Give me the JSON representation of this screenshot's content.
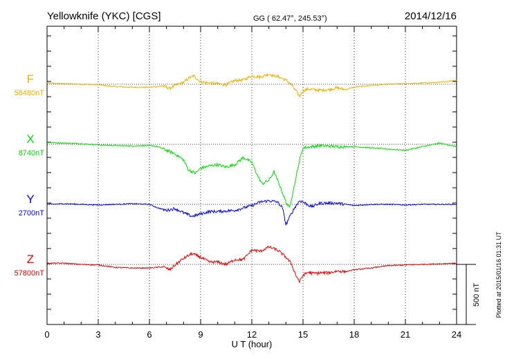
{
  "header": {
    "station": "Yellowknife (YKC)  [CGS]",
    "coords": "GG ( 62.47°, 245.53°)",
    "date": "2014/12/16"
  },
  "footer": {
    "xlabel": "U T (hour)",
    "plotted": "Plotted at 2015/01/16 01:31  UT",
    "scale": "500 nT"
  },
  "chart_data": {
    "type": "line",
    "xlabel": "U T (hour)",
    "xlim": [
      0,
      24
    ],
    "xticks": [
      0,
      3,
      6,
      9,
      12,
      15,
      18,
      21,
      24
    ],
    "scale_bar_nT": 500,
    "grid": "dotted",
    "series": [
      {
        "name": "F",
        "baseline": "58480nT",
        "color": "#f0b000",
        "offset_row": 0,
        "x": [
          0,
          1,
          2,
          3,
          4,
          5,
          6,
          6.8,
          7.2,
          7.5,
          8,
          8.3,
          8.6,
          9,
          9.5,
          10,
          10.5,
          11,
          11.5,
          12,
          12.5,
          13,
          13.3,
          13.6,
          14,
          14.3,
          14.6,
          14.8,
          15,
          15.3,
          15.6,
          16,
          16.5,
          17,
          17.5,
          18,
          19,
          20,
          21,
          22,
          23,
          24
        ],
        "y": [
          10,
          5,
          0,
          -5,
          -20,
          -25,
          -25,
          -15,
          -35,
          -10,
          15,
          50,
          70,
          20,
          10,
          5,
          -5,
          30,
          35,
          70,
          60,
          85,
          70,
          60,
          35,
          0,
          -60,
          -100,
          -55,
          -40,
          -45,
          -50,
          -45,
          -30,
          -45,
          -25,
          -10,
          0,
          5,
          10,
          15,
          35
        ]
      },
      {
        "name": "X",
        "baseline": "8740nT",
        "color": "#00e000",
        "offset_row": 1,
        "x": [
          0,
          1,
          2,
          3,
          4,
          5,
          6,
          6.5,
          7,
          7.5,
          8,
          8.3,
          8.7,
          9,
          9.5,
          10,
          10.5,
          11,
          11.5,
          12,
          12.3,
          12.6,
          13,
          13.3,
          13.6,
          14,
          14.2,
          14.5,
          14.8,
          15,
          15.5,
          16,
          17,
          18,
          19,
          20,
          21,
          22,
          23,
          24
        ],
        "y": [
          15,
          10,
          5,
          -5,
          -10,
          -15,
          -10,
          -20,
          -50,
          -80,
          -130,
          -215,
          -240,
          -200,
          -180,
          -170,
          -190,
          -170,
          -110,
          -150,
          -250,
          -330,
          -300,
          -230,
          -330,
          -480,
          -530,
          -340,
          -130,
          -30,
          -20,
          -10,
          -20,
          -20,
          -30,
          -40,
          -50,
          -20,
          10,
          -20
        ]
      },
      {
        "name": "Y",
        "baseline": "2700nT",
        "color": "#0000ff",
        "offset_row": 2,
        "x": [
          0,
          1,
          2,
          3,
          4,
          5,
          6,
          6.5,
          7,
          7.5,
          8,
          8.5,
          9,
          9.5,
          10,
          11,
          11.5,
          12,
          12.5,
          13,
          13.5,
          13.8,
          14,
          14.2,
          14.5,
          14.8,
          15,
          15.5,
          16,
          17,
          18,
          19,
          20,
          21,
          22,
          23,
          24
        ],
        "y": [
          0,
          5,
          0,
          -5,
          0,
          5,
          0,
          -30,
          -50,
          -35,
          -70,
          -100,
          -80,
          -60,
          -60,
          -50,
          -30,
          -10,
          20,
          30,
          20,
          -30,
          -170,
          -110,
          -30,
          30,
          20,
          -20,
          10,
          10,
          -10,
          0,
          0,
          -5,
          0,
          0,
          0
        ]
      },
      {
        "name": "Z",
        "baseline": "57800nT",
        "color": "#ee0000",
        "offset_row": 3,
        "x": [
          0,
          1,
          2,
          3,
          4,
          5,
          6,
          6.8,
          7.2,
          7.5,
          8,
          8.5,
          9,
          9.5,
          10,
          10.5,
          11,
          11.5,
          12,
          12.5,
          13,
          13.3,
          13.6,
          14,
          14.3,
          14.6,
          14.8,
          15,
          15.3,
          15.6,
          16,
          16.5,
          17,
          17.5,
          18,
          19,
          20,
          21,
          22,
          23,
          24
        ],
        "y": [
          10,
          10,
          0,
          -5,
          -25,
          -30,
          -30,
          -20,
          -45,
          -5,
          50,
          90,
          60,
          20,
          20,
          0,
          40,
          40,
          120,
          110,
          145,
          130,
          110,
          60,
          10,
          -95,
          -145,
          -90,
          -65,
          -75,
          -70,
          -70,
          -55,
          -60,
          -45,
          -30,
          -10,
          -5,
          0,
          5,
          10
        ]
      }
    ]
  }
}
